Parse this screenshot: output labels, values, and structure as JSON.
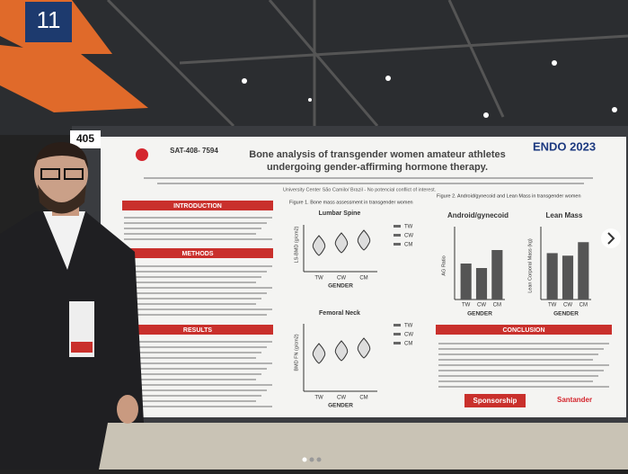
{
  "sign": "11",
  "booth": "405",
  "poster": {
    "code": "SAT-408- 7594",
    "title_lines": [
      "Bone analysis of transgender women amateur athletes",
      "undergoing gender-affirming hormone therapy."
    ],
    "logo": "ENDO 2023",
    "affiliation": "University Center São Camilo/ Brazil - No potencial conflict of interest.",
    "sections": [
      "INTRODUCTION",
      "METHODS",
      "RESULTS",
      "CONCLUSION"
    ],
    "figure1": {
      "caption": "Figure 1. Bone mass assessment in transgender women",
      "panels": [
        "Lumbar Spine",
        "Femoral Neck"
      ],
      "y_labels": [
        "LS-BMD (g/cm2)",
        "BMD FN (g/cm2)"
      ],
      "x_label": "GENDER",
      "groups": [
        "TW",
        "CW",
        "CM"
      ]
    },
    "figure2": {
      "caption": "Figure 2. Android/gynecoid and Lean Mass in transgender women",
      "charts": [
        {
          "type": "bar",
          "title": "Android/gynecoid",
          "y_label": "AG Ratio",
          "x_label": "GENDER",
          "categories": [
            "TW",
            "CW",
            "CM"
          ],
          "values": [
            0.8,
            0.7,
            1.1
          ],
          "ylim": [
            0,
            1.5
          ],
          "color": "#555555"
        },
        {
          "type": "bar",
          "title": "Lean Mass",
          "y_label": "Lean Corporal Mass (kg)",
          "x_label": "GENDER",
          "categories": [
            "TW",
            "CW",
            "CM"
          ],
          "values": [
            55,
            52,
            68
          ],
          "ylim": [
            0,
            80
          ],
          "color": "#555555"
        }
      ]
    },
    "sponsorship": "Sponsorship",
    "sponsor": "Santander"
  }
}
